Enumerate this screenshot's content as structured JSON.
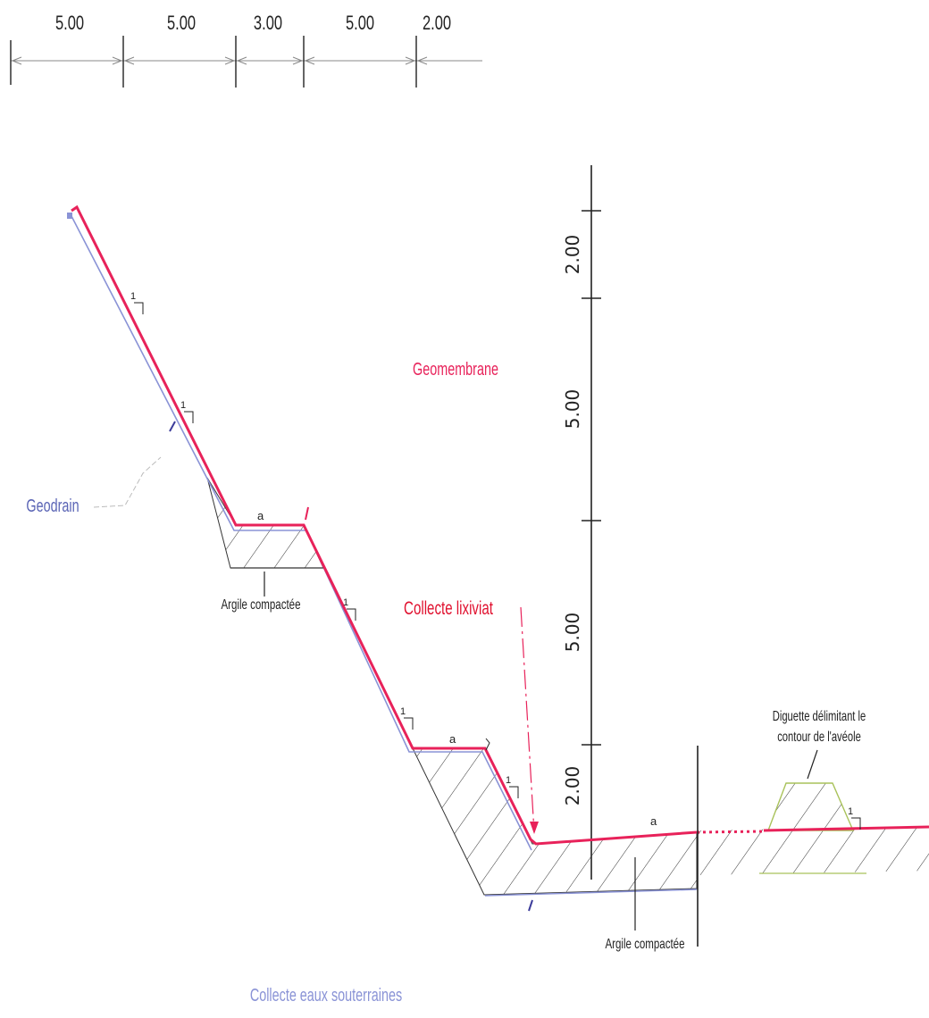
{
  "top_dimensions": [
    "5.00",
    "5.00",
    "3.00",
    "5.00",
    "2.00"
  ],
  "vertical_dimensions": [
    "2.00",
    "5.00",
    "5.00",
    "2.00"
  ],
  "labels": {
    "geomembrane": "Geomembrane",
    "geodrain": "Geodrain",
    "argile_upper": "Argile compactée",
    "collecte_lixiviat": "Collecte lixiviat",
    "diguette_line1": "Diguette délimitant le",
    "diguette_line2": "contour de l'avéole",
    "argile_lower": "Argile compactée",
    "collecte_eaux": "Collecte eaux souterraines"
  },
  "slope_marks": {
    "one": "1",
    "a": "a"
  },
  "colors": {
    "geomembrane": "#e8225a",
    "geodrain": "#8a93d6",
    "linework": "#222222",
    "hatch": "#333333",
    "diguette": "#a9c25a"
  }
}
